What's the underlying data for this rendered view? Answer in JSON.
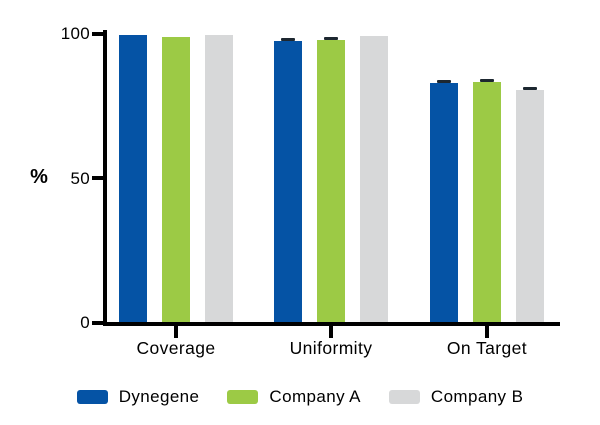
{
  "chart_data": {
    "type": "bar",
    "title": "",
    "ylabel": "%",
    "categories": [
      "Coverage",
      "Uniformity",
      "On Target"
    ],
    "series": [
      {
        "name": "Dynegene",
        "color": "#0553a5",
        "values": [
          99.8,
          97.5,
          83.0
        ],
        "errors": [
          null,
          0.8,
          0.7
        ]
      },
      {
        "name": "Company A",
        "color": "#9cca45",
        "values": [
          99.0,
          97.9,
          83.4
        ],
        "errors": [
          null,
          0.8,
          0.7
        ]
      },
      {
        "name": "Company B",
        "color": "#d7d8d9",
        "values": [
          99.6,
          99.2,
          80.5
        ],
        "errors": [
          null,
          null,
          0.6
        ]
      }
    ],
    "yticks": [
      0,
      50,
      100
    ],
    "ylim": [
      0,
      100
    ],
    "grid": false,
    "legend_position": "bottom",
    "axis_color": "#000000",
    "error_cap_color": "#1d2730"
  }
}
